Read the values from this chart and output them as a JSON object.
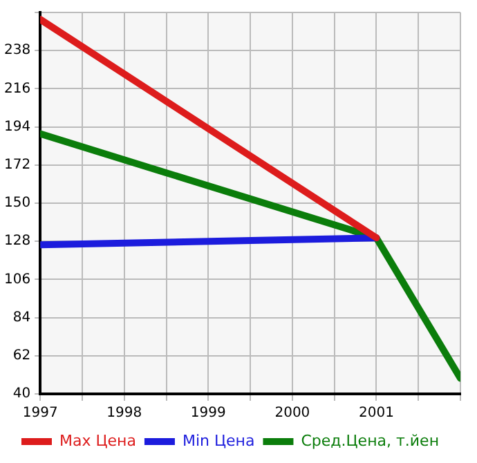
{
  "chart_data": {
    "type": "line",
    "x": [
      1997,
      2001,
      2002
    ],
    "series": [
      {
        "name": "Max Цена",
        "color": "#dd1c1c",
        "values": [
          256,
          130,
          null
        ]
      },
      {
        "name": "Min Цена",
        "color": "#1c1cdd",
        "values": [
          126,
          130,
          null
        ]
      },
      {
        "name": "Сред.Цена, т.йен",
        "color": "#0b7d0b",
        "values": [
          190,
          130,
          49
        ]
      }
    ],
    "xlim": [
      1997,
      2002
    ],
    "xticks": [
      1997,
      {
        "value": 1997.5,
        "label": null
      },
      1998,
      {
        "value": 1998.5,
        "label": null
      },
      1999,
      {
        "value": 1999.5,
        "label": null
      },
      2000,
      {
        "value": 2000.5,
        "label": null
      },
      2001,
      {
        "value": 2001.5,
        "label": null
      },
      {
        "value": 2002,
        "label": null
      }
    ],
    "ylim": [
      40,
      260
    ],
    "yticks": [
      40,
      62,
      84,
      106,
      128,
      150,
      172,
      194,
      216,
      238,
      {
        "value": 260,
        "label": null
      }
    ],
    "grid": true,
    "legend": "bottom",
    "marker": "none",
    "line_style": "solid"
  }
}
